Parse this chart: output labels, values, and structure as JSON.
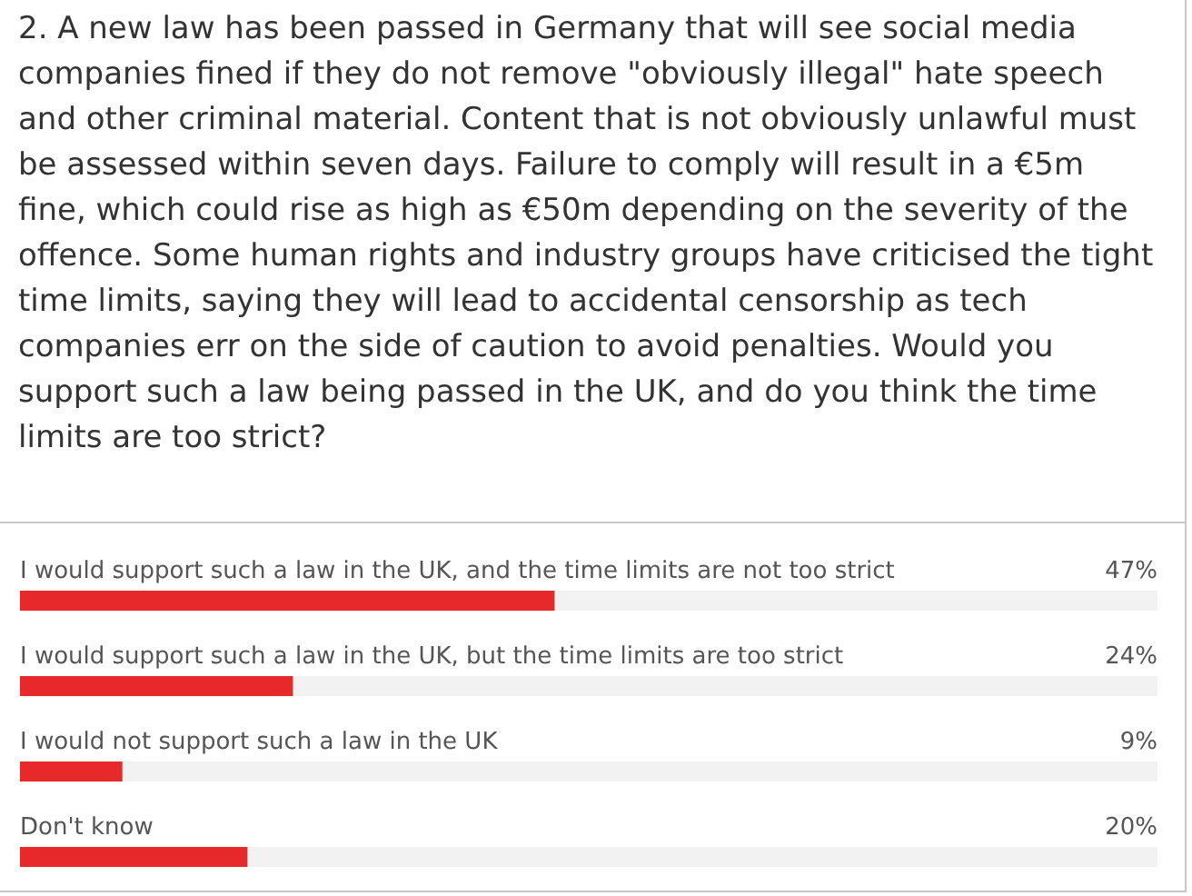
{
  "chart_data": {
    "type": "bar",
    "orientation": "horizontal",
    "title": "2. A new law has been passed in Germany that will see social media companies fined if they do not remove \"obviously illegal\" hate speech and other criminal material. Content that is not obviously unlawful must be assessed within seven days. Failure to comply will result in a €5m fine, which could rise as high as €50m depending on the severity of the offence. Some human rights and industry groups have criticised the tight time limits, saying they will lead to accidental censorship as tech companies err on the side of caution to avoid penalties. Would you support such a law being passed in the UK, and do you think the time limits are too strict?",
    "categories": [
      "I would support such a law in the UK, and the time limits are not too strict",
      "I would support such a law in the UK, but the time limits are too strict",
      "I would not support such a law in the UK",
      "Don't know"
    ],
    "values": [
      47,
      24,
      9,
      20
    ],
    "value_labels": [
      "47%",
      "24%",
      "9%",
      "20%"
    ],
    "color": "#e8292b",
    "xlim": [
      0,
      100
    ]
  }
}
